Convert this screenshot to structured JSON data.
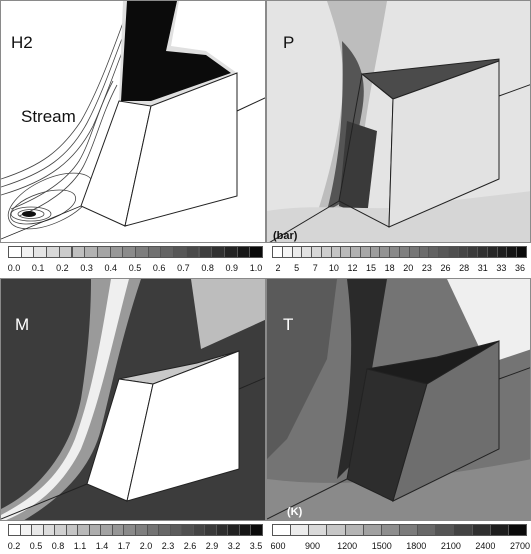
{
  "panels": [
    {
      "label": "H2",
      "sublabel": "Stream",
      "unit": "",
      "ticks": [
        "0.0",
        "0.1",
        "0.2",
        "0.3",
        "0.4",
        "0.5",
        "0.6",
        "0.7",
        "0.8",
        "0.9",
        "1.0"
      ]
    },
    {
      "label": "P",
      "sublabel": "",
      "unit": "(bar)",
      "ticks": [
        "2",
        "5",
        "7",
        "10",
        "12",
        "15",
        "18",
        "20",
        "23",
        "26",
        "28",
        "31",
        "33",
        "36"
      ]
    },
    {
      "label": "M",
      "sublabel": "",
      "unit": "",
      "ticks": [
        "0.2",
        "0.5",
        "0.8",
        "1.1",
        "1.4",
        "1.7",
        "2.0",
        "2.3",
        "2.6",
        "2.9",
        "3.2",
        "3.5"
      ]
    },
    {
      "label": "T",
      "sublabel": "",
      "unit": "(K)",
      "ticks": [
        "600",
        "900",
        "1200",
        "1500",
        "1800",
        "2100",
        "2400",
        "2700"
      ]
    }
  ]
}
